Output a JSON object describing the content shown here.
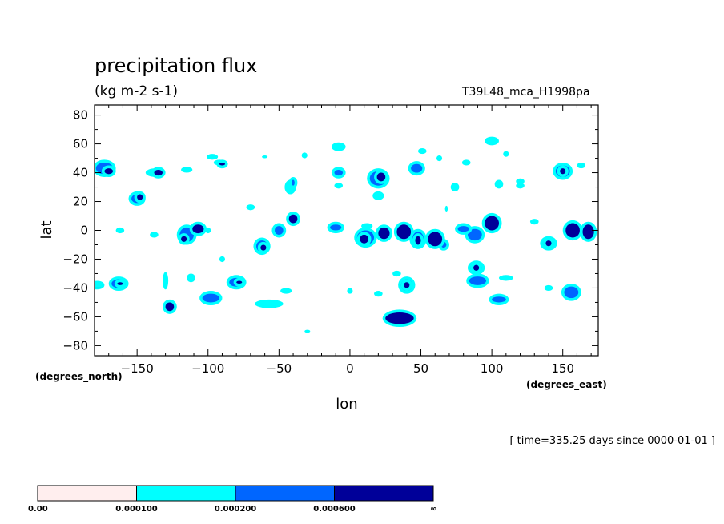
{
  "chart_data": {
    "type": "heatmap",
    "title": "precipitation flux",
    "units": "(kg m-2 s-1)",
    "run_label": "T39L48_mca_H1998pa",
    "xlabel": "lon",
    "ylabel": "lat",
    "x_units": "(degrees_east)",
    "y_units": "(degrees_north)",
    "time_note": "[ time=335.25 days since 0000-01-01 ]",
    "xlim": [
      -180,
      175
    ],
    "ylim": [
      -87,
      87
    ],
    "x_ticks": [
      -150,
      -100,
      -50,
      0,
      50,
      100,
      150
    ],
    "y_ticks": [
      80,
      60,
      40,
      20,
      0,
      -20,
      -40,
      -60,
      -80
    ],
    "x_tick_labels": [
      "−150",
      "−100",
      "−50",
      "0",
      "50",
      "100",
      "150"
    ],
    "y_tick_labels": [
      "80",
      "60",
      "40",
      "20",
      "0",
      "−20",
      "−40",
      "−60",
      "−80"
    ],
    "levels": [
      {
        "label": "0.00",
        "color": "#ffeeee"
      },
      {
        "label": "0.000100",
        "color": "#00ffff"
      },
      {
        "label": "0.000200",
        "color": "#0066ff"
      },
      {
        "label": "0.000600",
        "color": "#000099"
      },
      {
        "label": "∞",
        "color": ""
      }
    ],
    "cells": [
      {
        "lon": -173,
        "lat": 43,
        "rx": 6,
        "ry": 4,
        "level": 2
      },
      {
        "lon": -170,
        "lat": 41,
        "rx": 3,
        "ry": 2,
        "level": 3
      },
      {
        "lon": -150,
        "lat": 22,
        "rx": 4,
        "ry": 3,
        "level": 2
      },
      {
        "lon": -148,
        "lat": 23,
        "rx": 2,
        "ry": 2,
        "level": 3
      },
      {
        "lon": -137,
        "lat": 40,
        "rx": 7,
        "ry": 3,
        "level": 1
      },
      {
        "lon": -135,
        "lat": 40,
        "rx": 3,
        "ry": 2,
        "level": 3
      },
      {
        "lon": -115,
        "lat": 42,
        "rx": 4,
        "ry": 2,
        "level": 1
      },
      {
        "lon": -97,
        "lat": 51,
        "rx": 4,
        "ry": 2,
        "level": 1
      },
      {
        "lon": -92,
        "lat": 47,
        "rx": 4,
        "ry": 2,
        "level": 1
      },
      {
        "lon": -90,
        "lat": 46,
        "rx": 2,
        "ry": 1,
        "level": 3
      },
      {
        "lon": -115,
        "lat": -3,
        "rx": 5,
        "ry": 5,
        "level": 2
      },
      {
        "lon": -117,
        "lat": -6,
        "rx": 2,
        "ry": 2,
        "level": 3
      },
      {
        "lon": -107,
        "lat": 1,
        "rx": 4,
        "ry": 3,
        "level": 3
      },
      {
        "lon": -162,
        "lat": 0,
        "rx": 3,
        "ry": 2,
        "level": 1
      },
      {
        "lon": -178,
        "lat": -38,
        "rx": 5,
        "ry": 3,
        "level": 1
      },
      {
        "lon": -163,
        "lat": -37,
        "rx": 5,
        "ry": 3,
        "level": 2
      },
      {
        "lon": -162,
        "lat": -37,
        "rx": 2,
        "ry": 1,
        "level": 3
      },
      {
        "lon": -130,
        "lat": -35,
        "rx": 2,
        "ry": 6,
        "level": 1
      },
      {
        "lon": -127,
        "lat": -53,
        "rx": 3,
        "ry": 3,
        "level": 3
      },
      {
        "lon": -112,
        "lat": -33,
        "rx": 3,
        "ry": 3,
        "level": 1
      },
      {
        "lon": -98,
        "lat": -47,
        "rx": 6,
        "ry": 3,
        "level": 2
      },
      {
        "lon": -80,
        "lat": -36,
        "rx": 5,
        "ry": 3,
        "level": 2
      },
      {
        "lon": -78,
        "lat": -36,
        "rx": 2,
        "ry": 1,
        "level": 3
      },
      {
        "lon": -57,
        "lat": -51,
        "rx": 10,
        "ry": 3,
        "level": 1
      },
      {
        "lon": -62,
        "lat": -11,
        "rx": 4,
        "ry": 4,
        "level": 2
      },
      {
        "lon": -61,
        "lat": -12,
        "rx": 2,
        "ry": 2,
        "level": 3
      },
      {
        "lon": -70,
        "lat": 16,
        "rx": 3,
        "ry": 2,
        "level": 1
      },
      {
        "lon": -40,
        "lat": 8,
        "rx": 3,
        "ry": 3,
        "level": 3
      },
      {
        "lon": -42,
        "lat": 30,
        "rx": 4,
        "ry": 5,
        "level": 1
      },
      {
        "lon": -40,
        "lat": 33,
        "rx": 1,
        "ry": 2,
        "level": 2
      },
      {
        "lon": -50,
        "lat": 0,
        "rx": 3,
        "ry": 3,
        "level": 2
      },
      {
        "lon": -10,
        "lat": 2,
        "rx": 4,
        "ry": 2,
        "level": 2
      },
      {
        "lon": -8,
        "lat": 58,
        "rx": 5,
        "ry": 3,
        "level": 1
      },
      {
        "lon": -8,
        "lat": 40,
        "rx": 3,
        "ry": 2,
        "level": 2
      },
      {
        "lon": -8,
        "lat": 31,
        "rx": 3,
        "ry": 2,
        "level": 1
      },
      {
        "lon": 11,
        "lat": -5,
        "rx": 6,
        "ry": 5,
        "level": 2
      },
      {
        "lon": 10,
        "lat": -6,
        "rx": 3,
        "ry": 3,
        "level": 3
      },
      {
        "lon": 12,
        "lat": 3,
        "rx": 4,
        "ry": 2,
        "level": 1
      },
      {
        "lon": 24,
        "lat": -2,
        "rx": 4,
        "ry": 4,
        "level": 3
      },
      {
        "lon": 38,
        "lat": -1,
        "rx": 5,
        "ry": 5,
        "level": 3
      },
      {
        "lon": 48,
        "lat": -6,
        "rx": 4,
        "ry": 5,
        "level": 2
      },
      {
        "lon": 48,
        "lat": -7,
        "rx": 2,
        "ry": 3,
        "level": 3
      },
      {
        "lon": 60,
        "lat": -6,
        "rx": 5,
        "ry": 5,
        "level": 3
      },
      {
        "lon": 20,
        "lat": 36,
        "rx": 6,
        "ry": 5,
        "level": 2
      },
      {
        "lon": 22,
        "lat": 37,
        "rx": 3,
        "ry": 3,
        "level": 3
      },
      {
        "lon": 20,
        "lat": 24,
        "rx": 4,
        "ry": 3,
        "level": 1
      },
      {
        "lon": 47,
        "lat": 43,
        "rx": 4,
        "ry": 3,
        "level": 2
      },
      {
        "lon": 51,
        "lat": 55,
        "rx": 3,
        "ry": 2,
        "level": 1
      },
      {
        "lon": 35,
        "lat": -61,
        "rx": 10,
        "ry": 4,
        "level": 3
      },
      {
        "lon": 40,
        "lat": -38,
        "rx": 4,
        "ry": 4,
        "level": 2
      },
      {
        "lon": 40,
        "lat": -38,
        "rx": 2,
        "ry": 2,
        "level": 3
      },
      {
        "lon": 20,
        "lat": -44,
        "rx": 3,
        "ry": 2,
        "level": 1
      },
      {
        "lon": 82,
        "lat": 47,
        "rx": 3,
        "ry": 2,
        "level": 1
      },
      {
        "lon": 74,
        "lat": 30,
        "rx": 3,
        "ry": 3,
        "level": 1
      },
      {
        "lon": 88,
        "lat": -3,
        "rx": 5,
        "ry": 4,
        "level": 2
      },
      {
        "lon": 100,
        "lat": 5,
        "rx": 5,
        "ry": 5,
        "level": 3
      },
      {
        "lon": 100,
        "lat": 62,
        "rx": 5,
        "ry": 3,
        "level": 1
      },
      {
        "lon": 89,
        "lat": -26,
        "rx": 4,
        "ry": 3,
        "level": 2
      },
      {
        "lon": 89,
        "lat": -26,
        "rx": 2,
        "ry": 2,
        "level": 3
      },
      {
        "lon": 90,
        "lat": -35,
        "rx": 6,
        "ry": 3,
        "level": 2
      },
      {
        "lon": 105,
        "lat": -48,
        "rx": 5,
        "ry": 2,
        "level": 2
      },
      {
        "lon": 140,
        "lat": -9,
        "rx": 4,
        "ry": 3,
        "level": 2
      },
      {
        "lon": 140,
        "lat": -9,
        "rx": 2,
        "ry": 2,
        "level": 3
      },
      {
        "lon": 150,
        "lat": 41,
        "rx": 5,
        "ry": 4,
        "level": 2
      },
      {
        "lon": 150,
        "lat": 41,
        "rx": 2,
        "ry": 2,
        "level": 3
      },
      {
        "lon": 157,
        "lat": 0,
        "rx": 5,
        "ry": 5,
        "level": 3
      },
      {
        "lon": 168,
        "lat": -1,
        "rx": 4,
        "ry": 5,
        "level": 3
      },
      {
        "lon": 156,
        "lat": -43,
        "rx": 5,
        "ry": 4,
        "level": 2
      },
      {
        "lon": 105,
        "lat": 32,
        "rx": 3,
        "ry": 3,
        "level": 1
      },
      {
        "lon": 120,
        "lat": 31,
        "rx": 3,
        "ry": 2,
        "level": 1
      },
      {
        "lon": 163,
        "lat": 45,
        "rx": 3,
        "ry": 2,
        "level": 1
      },
      {
        "lon": 80,
        "lat": 2,
        "rx": 4,
        "ry": 2,
        "level": 1
      },
      {
        "lon": -100,
        "lat": 0,
        "rx": 2,
        "ry": 2,
        "level": 1
      },
      {
        "lon": -30,
        "lat": -70,
        "rx": 2,
        "ry": 1,
        "level": 1
      },
      {
        "lon": -32,
        "lat": 52,
        "rx": 2,
        "ry": 2,
        "level": 1
      },
      {
        "lon": -60,
        "lat": 51,
        "rx": 2,
        "ry": 1,
        "level": 1
      },
      {
        "lon": 140,
        "lat": -40,
        "rx": 3,
        "ry": 2,
        "level": 1
      },
      {
        "lon": 0,
        "lat": -42,
        "rx": 2,
        "ry": 2,
        "level": 1
      },
      {
        "lon": 110,
        "lat": -33,
        "rx": 5,
        "ry": 2,
        "level": 1
      },
      {
        "lon": -45,
        "lat": -42,
        "rx": 4,
        "ry": 2,
        "level": 1
      },
      {
        "lon": 33,
        "lat": -30,
        "rx": 3,
        "ry": 2,
        "level": 1
      },
      {
        "lon": 130,
        "lat": 6,
        "rx": 3,
        "ry": 2,
        "level": 1
      },
      {
        "lon": -138,
        "lat": -3,
        "rx": 3,
        "ry": 2,
        "level": 1
      },
      {
        "lon": 120,
        "lat": 34,
        "rx": 3,
        "ry": 2,
        "level": 1
      },
      {
        "lon": -90,
        "lat": -20,
        "rx": 2,
        "ry": 2,
        "level": 1
      },
      {
        "lon": 80,
        "lat": 1,
        "rx": 4,
        "ry": 2,
        "level": 2
      },
      {
        "lon": 66,
        "lat": -10,
        "rx": 2,
        "ry": 2,
        "level": 2
      },
      {
        "lon": 68,
        "lat": 15,
        "rx": 1,
        "ry": 2,
        "level": 1
      },
      {
        "lon": 110,
        "lat": 53,
        "rx": 2,
        "ry": 2,
        "level": 1
      },
      {
        "lon": 63,
        "lat": 50,
        "rx": 2,
        "ry": 2,
        "level": 1
      }
    ]
  }
}
